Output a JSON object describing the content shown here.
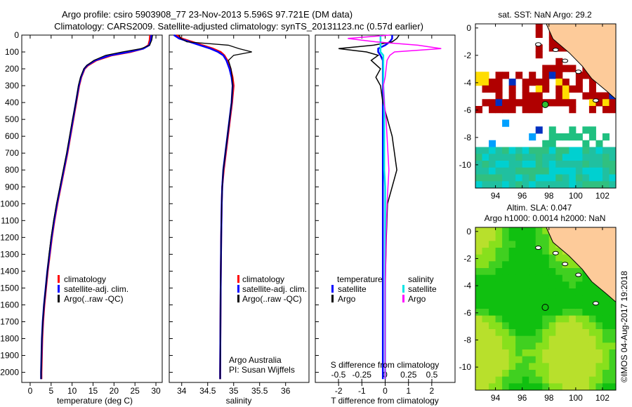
{
  "title_line1": "Argo profile: csiro 5903908_77 23-Nov-2013 5.596S 97.721E (DM data)",
  "title_line2": "Climatology: CARS2009. Satellite-adjusted climatology: synTS_20131123.nc (0.57d earlier)",
  "footer": "©IMOS 04-Aug-2017 19:2018",
  "colors": {
    "climatology": "#ff0000",
    "satellite": "#0000ff",
    "argo": "#000000",
    "sal_satellite": "#00e5e5",
    "sal_argo": "#ff00ff",
    "land": "#fdcb9a"
  },
  "chart_data": [
    {
      "type": "line",
      "title": "",
      "xlabel": "temperature (deg C)",
      "ylabel": "",
      "xlim": [
        -2,
        31.5
      ],
      "ylim": [
        2060,
        0
      ],
      "xticks": [
        "0",
        "5",
        "10",
        "15",
        "20",
        "25",
        "30"
      ],
      "xtick_values": [
        0,
        5,
        10,
        15,
        20,
        25,
        30
      ],
      "yticks": [
        "0",
        "100",
        "200",
        "300",
        "400",
        "500",
        "600",
        "700",
        "800",
        "900",
        "1000",
        "1100",
        "1200",
        "1300",
        "1400",
        "1500",
        "1600",
        "1700",
        "1800",
        "1900",
        "2000"
      ],
      "legend": [
        "climatology",
        "satellite-adj. clim.",
        "Argo(..raw -QC)"
      ],
      "depth": [
        0,
        30,
        60,
        80,
        100,
        120,
        150,
        180,
        200,
        250,
        300,
        400,
        500,
        600,
        700,
        800,
        900,
        1000,
        1100,
        1200,
        1300,
        1400,
        1500,
        1600,
        1700,
        1800,
        1900,
        2000,
        2040
      ],
      "series": [
        {
          "name": "climatology",
          "values": [
            28.6,
            28.5,
            28.2,
            27,
            24,
            19.5,
            15.8,
            13.8,
            13,
            12.2,
            11.7,
            11,
            10.3,
            9.6,
            8.9,
            8.1,
            7.3,
            6.5,
            5.8,
            5.2,
            4.7,
            4.2,
            3.8,
            3.4,
            3.1,
            2.9,
            2.8,
            2.7,
            2.7
          ]
        },
        {
          "name": "satellite-adj. clim.",
          "values": [
            28.9,
            28.8,
            28.4,
            27,
            23.5,
            19,
            15.5,
            13.6,
            12.9,
            12.1,
            11.6,
            10.9,
            10.2,
            9.5,
            8.8,
            8,
            7.2,
            6.4,
            5.7,
            5.1,
            4.6,
            4.1,
            3.7,
            3.3,
            3,
            2.8,
            2.7,
            2.6,
            2.6
          ]
        },
        {
          "name": "Argo(..raw -QC)",
          "values": [
            29.2,
            29,
            28.5,
            26.5,
            22,
            18,
            15.2,
            13.5,
            12.8,
            12,
            11.5,
            10.9,
            10.1,
            9.4,
            8.7,
            7.9,
            7.1,
            6.3,
            5.6,
            5,
            4.5,
            4.1,
            3.7,
            3.3,
            3,
            2.8,
            2.7,
            2.6,
            2.6
          ]
        }
      ]
    },
    {
      "type": "line",
      "xlabel": "salinity",
      "xlim": [
        33.76,
        36.45
      ],
      "ylim": [
        2060,
        0
      ],
      "xticks": [
        "34",
        "34.5",
        "35",
        "35.5",
        "36"
      ],
      "xtick_values": [
        34,
        34.5,
        35,
        35.5,
        36
      ],
      "legend": [
        "climatology",
        "satellite-adj. clim.",
        "Argo(..raw -QC)"
      ],
      "annotation": [
        "Argo Australia",
        "PI: Susan Wijffels"
      ],
      "depth": [
        0,
        20,
        40,
        60,
        80,
        100,
        120,
        150,
        200,
        250,
        300,
        400,
        500,
        600,
        700,
        800,
        900,
        1000,
        1200,
        1500,
        2000,
        2040
      ],
      "series": [
        {
          "name": "climatology",
          "values": [
            33.9,
            34,
            34.2,
            34.4,
            34.6,
            34.75,
            34.82,
            34.88,
            34.94,
            34.98,
            35.0,
            34.97,
            34.93,
            34.89,
            34.85,
            34.81,
            34.78,
            34.77,
            34.76,
            34.75,
            34.74,
            34.74
          ]
        },
        {
          "name": "satellite-adj. clim.",
          "values": [
            33.85,
            33.95,
            34.15,
            34.35,
            34.55,
            34.7,
            34.8,
            34.86,
            34.92,
            34.96,
            34.98,
            34.96,
            34.92,
            34.88,
            34.84,
            34.8,
            34.78,
            34.77,
            34.76,
            34.75,
            34.74,
            34.74
          ]
        },
        {
          "name": "Argo(..raw -QC)",
          "values": [
            33.95,
            33.98,
            34.1,
            34.9,
            35.1,
            35.35,
            35.0,
            34.9,
            34.95,
            34.97,
            34.98,
            34.96,
            34.92,
            34.88,
            34.84,
            34.8,
            34.78,
            34.77,
            34.76,
            34.75,
            34.74,
            34.74
          ]
        }
      ]
    },
    {
      "type": "line",
      "xlabel": "T difference from climatology",
      "top_xlabel": "S difference from climatology",
      "xlim": [
        -3,
        3
      ],
      "ylim": [
        2060,
        0
      ],
      "xticks": [
        "-2",
        "-1",
        "0",
        "1",
        "2"
      ],
      "xtick_values": [
        -2,
        -1,
        0,
        1,
        2
      ],
      "top_xticks": [
        "-0.5",
        "-0.25",
        "0",
        "0.25",
        "0.5"
      ],
      "top_xtick_values": [
        -0.5,
        -0.25,
        0,
        0.25,
        0.5
      ],
      "legend_temperature": {
        "title": "temperature",
        "items": [
          "satellite",
          "Argo"
        ]
      },
      "legend_salinity": {
        "title": "salinity",
        "items": [
          "satellite",
          "Argo"
        ]
      },
      "depth": [
        0,
        20,
        40,
        60,
        80,
        100,
        120,
        150,
        200,
        250,
        300,
        400,
        500,
        600,
        700,
        800,
        900,
        1000,
        1200,
        1500,
        2000,
        2040
      ],
      "series": [
        {
          "name": "T satellite",
          "values": [
            0.3,
            0.3,
            0.2,
            0,
            -0.3,
            -0.3,
            -0.2,
            -0.1,
            -0.1,
            -0.1,
            -0.1,
            -0.1,
            -0.1,
            -0.1,
            -0.1,
            -0.1,
            -0.1,
            -0.1,
            -0.1,
            -0.1,
            -0.1,
            -0.1
          ]
        },
        {
          "name": "T Argo",
          "values": [
            0.6,
            0.5,
            0.3,
            -0.5,
            -2.0,
            -0.8,
            -0.3,
            -0.6,
            -0.2,
            -0.4,
            -0.2,
            -0.1,
            0.1,
            0.3,
            0.4,
            0.5,
            0.3,
            0.1,
            0.05,
            0,
            0,
            0
          ]
        },
        {
          "name": "S satellite",
          "values": [
            -0.05,
            -0.05,
            -0.05,
            -0.05,
            -0.05,
            -0.05,
            -0.02,
            -0.02,
            -0.02,
            -0.02,
            -0.02,
            -0.01,
            -0.01,
            -0.01,
            -0.01,
            -0.01,
            0,
            0,
            0,
            0,
            0,
            0
          ]
        },
        {
          "name": "S Argo",
          "values": [
            0.05,
            -0.4,
            -0.1,
            0.35,
            0.6,
            0.1,
            0.05,
            0.02,
            0.01,
            0.0,
            -0.02,
            -0.01,
            0.01,
            0.02,
            0.03,
            0.04,
            0.03,
            0.02,
            0.01,
            0,
            0,
            0
          ]
        }
      ]
    },
    {
      "type": "heatmap",
      "title": "sat. SST: NaN Argo: 29.2",
      "xticks": [
        "94",
        "96",
        "98",
        "100",
        "102"
      ],
      "yticks": [
        "0",
        "-2",
        "-4",
        "-6",
        "-8",
        "-10"
      ],
      "xlim": [
        92.5,
        103
      ],
      "ylim": [
        -11.7,
        0.3
      ],
      "marker": [
        97.721,
        -5.596
      ]
    },
    {
      "type": "heatmap",
      "title_line1": "Altim. SLA: 0.047",
      "title_line2": "Argo h1000: 0.0014 h2000: NaN",
      "xticks": [
        "94",
        "96",
        "98",
        "100",
        "102"
      ],
      "yticks": [
        "0",
        "-2",
        "-4",
        "-6",
        "-8",
        "-10"
      ],
      "xlim": [
        92.5,
        103
      ],
      "ylim": [
        -11.7,
        0.3
      ],
      "marker": [
        97.721,
        -5.596
      ]
    }
  ]
}
